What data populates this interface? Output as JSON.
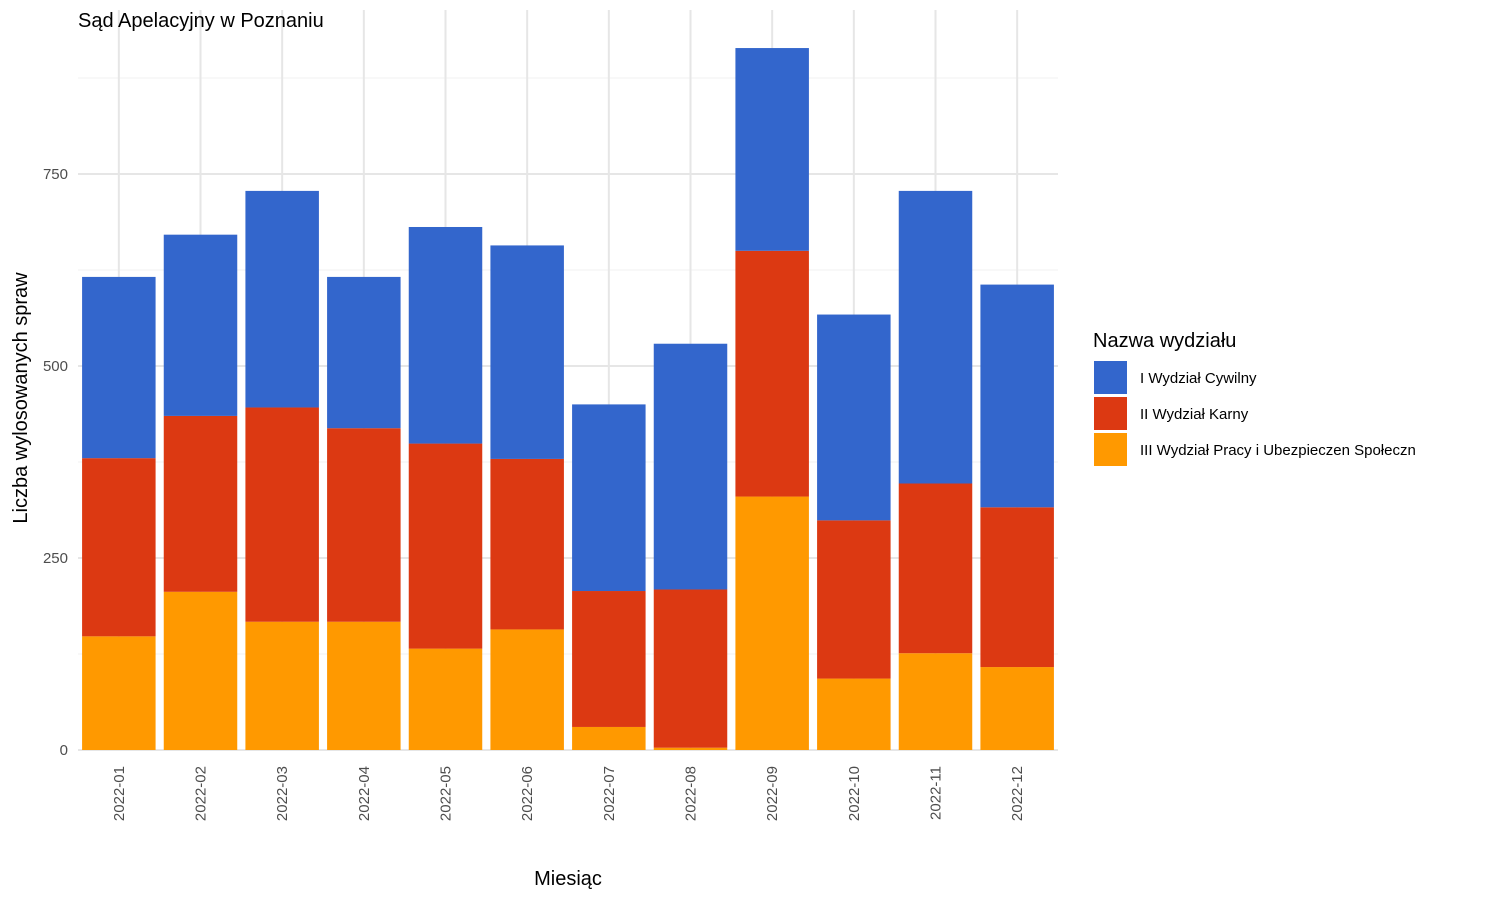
{
  "chart_data": {
    "type": "bar",
    "stacked": true,
    "title": "Sąd Apelacyjny w Poznaniu",
    "xlabel": "Miesiąc",
    "ylabel": "Liczba wylosowanych spraw",
    "ylim": [
      0,
      940
    ],
    "yticks": [
      0,
      250,
      500,
      750
    ],
    "grid": true,
    "legend": {
      "title": "Nazwa wydziału",
      "position": "right"
    },
    "categories": [
      "2022-01",
      "2022-02",
      "2022-03",
      "2022-04",
      "2022-05",
      "2022-06",
      "2022-07",
      "2022-08",
      "2022-09",
      "2022-10",
      "2022-11",
      "2022-12"
    ],
    "series": [
      {
        "name": "III Wydział Pracy i Ubezpieczen Społeczn",
        "color": "#ff9900",
        "values": [
          148,
          206,
          167,
          167,
          132,
          157,
          30,
          3,
          330,
          93,
          126,
          108
        ]
      },
      {
        "name": "II Wydział Karny",
        "color": "#dc3912",
        "values": [
          232,
          229,
          279,
          252,
          267,
          222,
          177,
          206,
          320,
          206,
          221,
          208
        ]
      },
      {
        "name": "I Wydział Cywilny",
        "color": "#3366cc",
        "values": [
          236,
          236,
          282,
          197,
          282,
          278,
          243,
          320,
          264,
          268,
          381,
          290
        ]
      }
    ],
    "legend_order": [
      "I Wydział Cywilny",
      "II Wydział Karny",
      "III Wydział Pracy i Ubezpieczen Społeczn"
    ]
  }
}
